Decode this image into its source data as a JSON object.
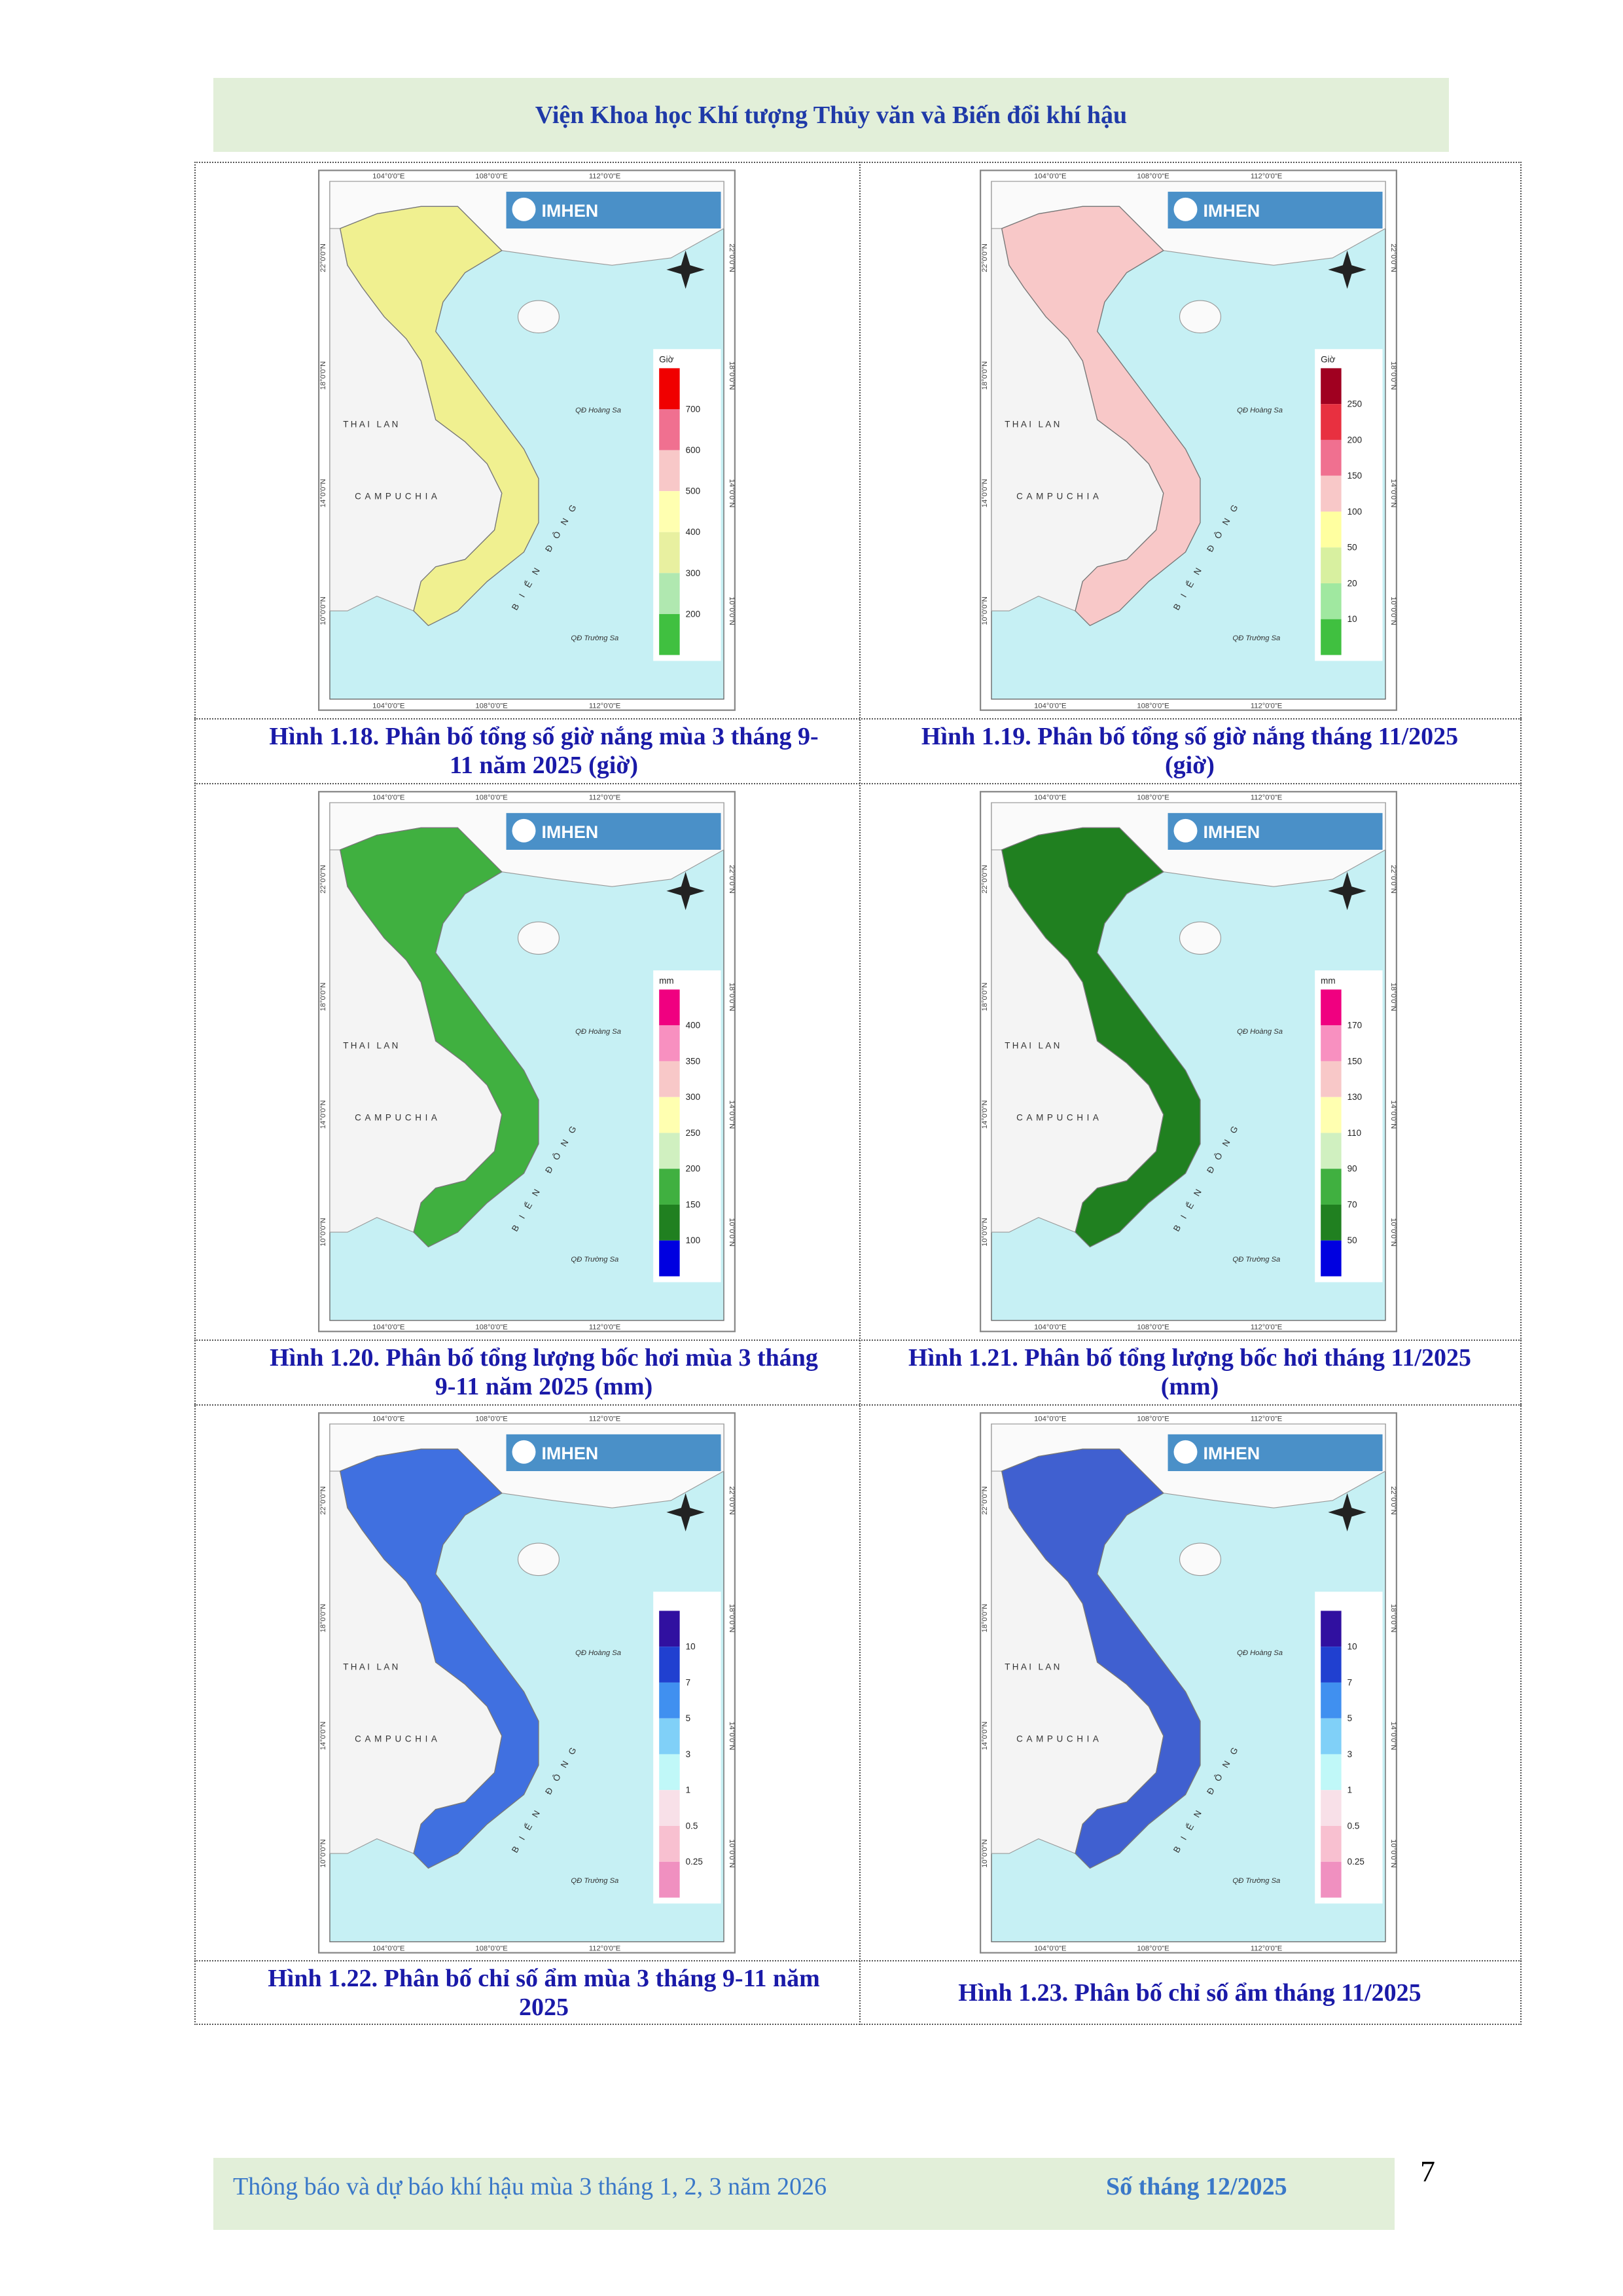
{
  "header": {
    "title": "Viện Khoa học Khí tượng Thủy văn và Biến đổi khí hậu"
  },
  "map_labels": {
    "lon": [
      "104°0'0\"E",
      "108°0'0\"E",
      "112°0'0\"E"
    ],
    "lat": [
      "22°0'0\"N",
      "18°0'0\"N",
      "14°0'0\"N",
      "10°0'0\"N"
    ],
    "logo": "IMHEN",
    "thailand": "THAI LAN",
    "cambodia": "CAMPUCHIA",
    "paracel": "QĐ Hoàng Sa",
    "spratly": "QĐ Trường Sa",
    "sea": "BIỂN ĐÔNG"
  },
  "figures": [
    {
      "caption": "Hình 1.18. Phân bố tổng số giờ nắng mùa 3 tháng 9-11 năm 2025 (giờ)",
      "legend": {
        "unit": "Giờ",
        "labels": [
          "700",
          "600",
          "500",
          "400",
          "300",
          "200"
        ]
      }
    },
    {
      "caption": "Hình 1.19. Phân bố tổng số giờ nắng tháng 11/2025 (giờ)",
      "legend": {
        "unit": "Giờ",
        "labels": [
          "250",
          "200",
          "150",
          "100",
          "50",
          "20",
          "10"
        ]
      }
    },
    {
      "caption": "Hình 1.20. Phân bố tổng lượng bốc hơi mùa 3 tháng 9-11 năm 2025 (mm)",
      "legend": {
        "unit": "mm",
        "labels": [
          "400",
          "350",
          "300",
          "250",
          "200",
          "150",
          "100"
        ]
      }
    },
    {
      "caption": "Hình 1.21. Phân bố tổng lượng bốc hơi tháng 11/2025 (mm)",
      "legend": {
        "unit": "mm",
        "labels": [
          "170",
          "150",
          "130",
          "110",
          "90",
          "70",
          "50"
        ]
      }
    },
    {
      "caption": "Hình 1.22. Phân bố chỉ số ẩm mùa 3 tháng 9-11 năm 2025",
      "legend": {
        "labels": [
          "10",
          "7",
          "5",
          "3",
          "1",
          "0.5",
          "0.25"
        ]
      }
    },
    {
      "caption": "Hình 1.23. Phân bố chỉ số ẩm tháng 11/2025",
      "legend": {
        "labels": [
          "10",
          "7",
          "5",
          "3",
          "1",
          "0.5",
          "0.25"
        ]
      }
    }
  ],
  "footer": {
    "left": "Thông báo và dự báo khí hậu mùa 3 tháng 1, 2, 3 năm 2026",
    "right": "Số tháng 12/2025",
    "page": "7"
  }
}
